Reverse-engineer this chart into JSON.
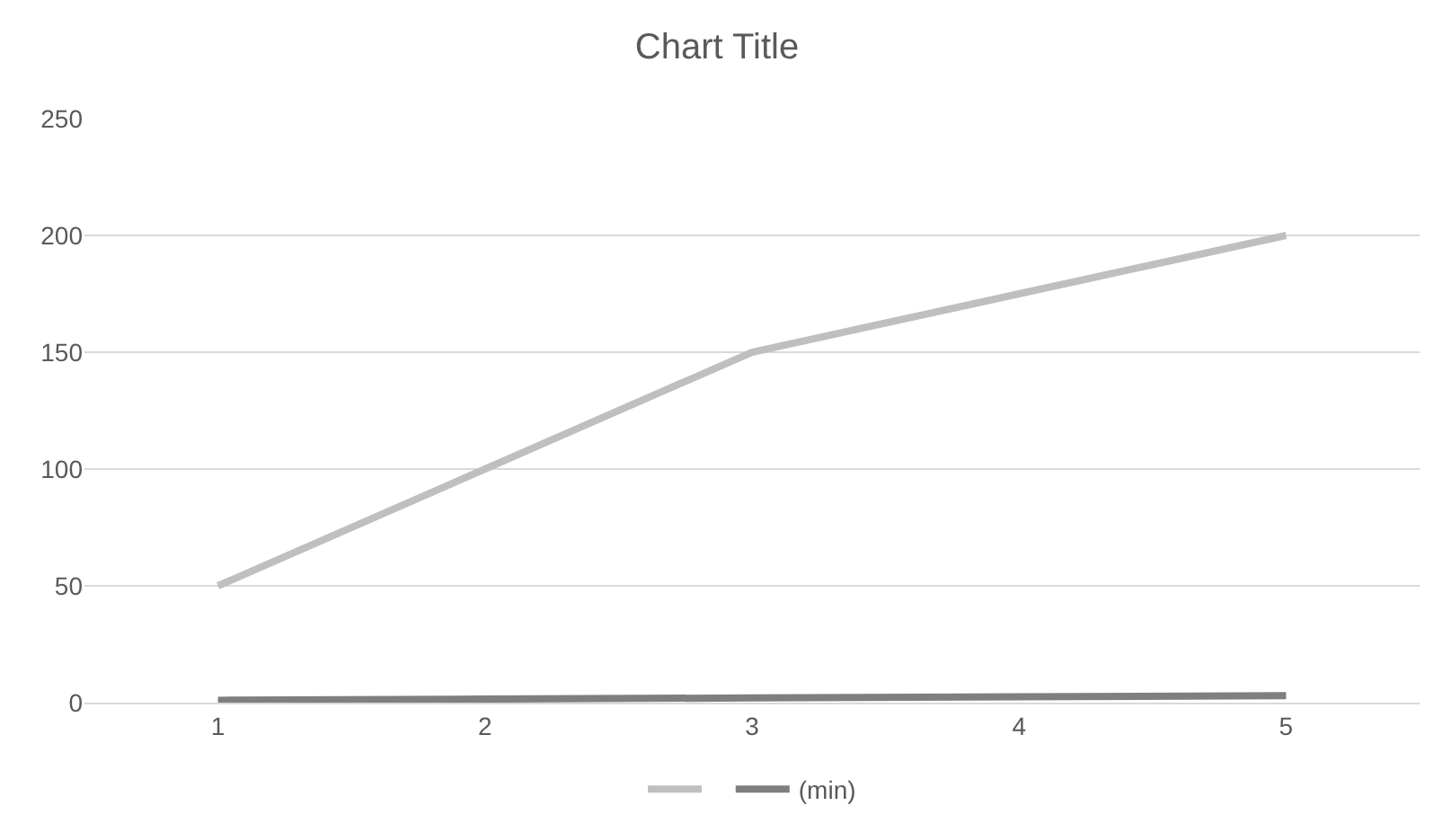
{
  "chart_data": {
    "type": "line",
    "title": "Chart Title",
    "categories": [
      "1",
      "2",
      "3",
      "4",
      "5"
    ],
    "series": [
      {
        "color": "#bfbfbf",
        "values": [
          50,
          100,
          150,
          175,
          200
        ]
      },
      {
        "name": "(min)",
        "color": "#7f7f7f",
        "values": [
          1,
          1.5,
          2,
          2.5,
          3
        ]
      }
    ],
    "ylim": [
      0,
      250
    ],
    "yticks": [
      0,
      50,
      100,
      150,
      200,
      250
    ],
    "grid": "y",
    "legend": "bottom",
    "marker": "none",
    "line_style": "solid"
  }
}
